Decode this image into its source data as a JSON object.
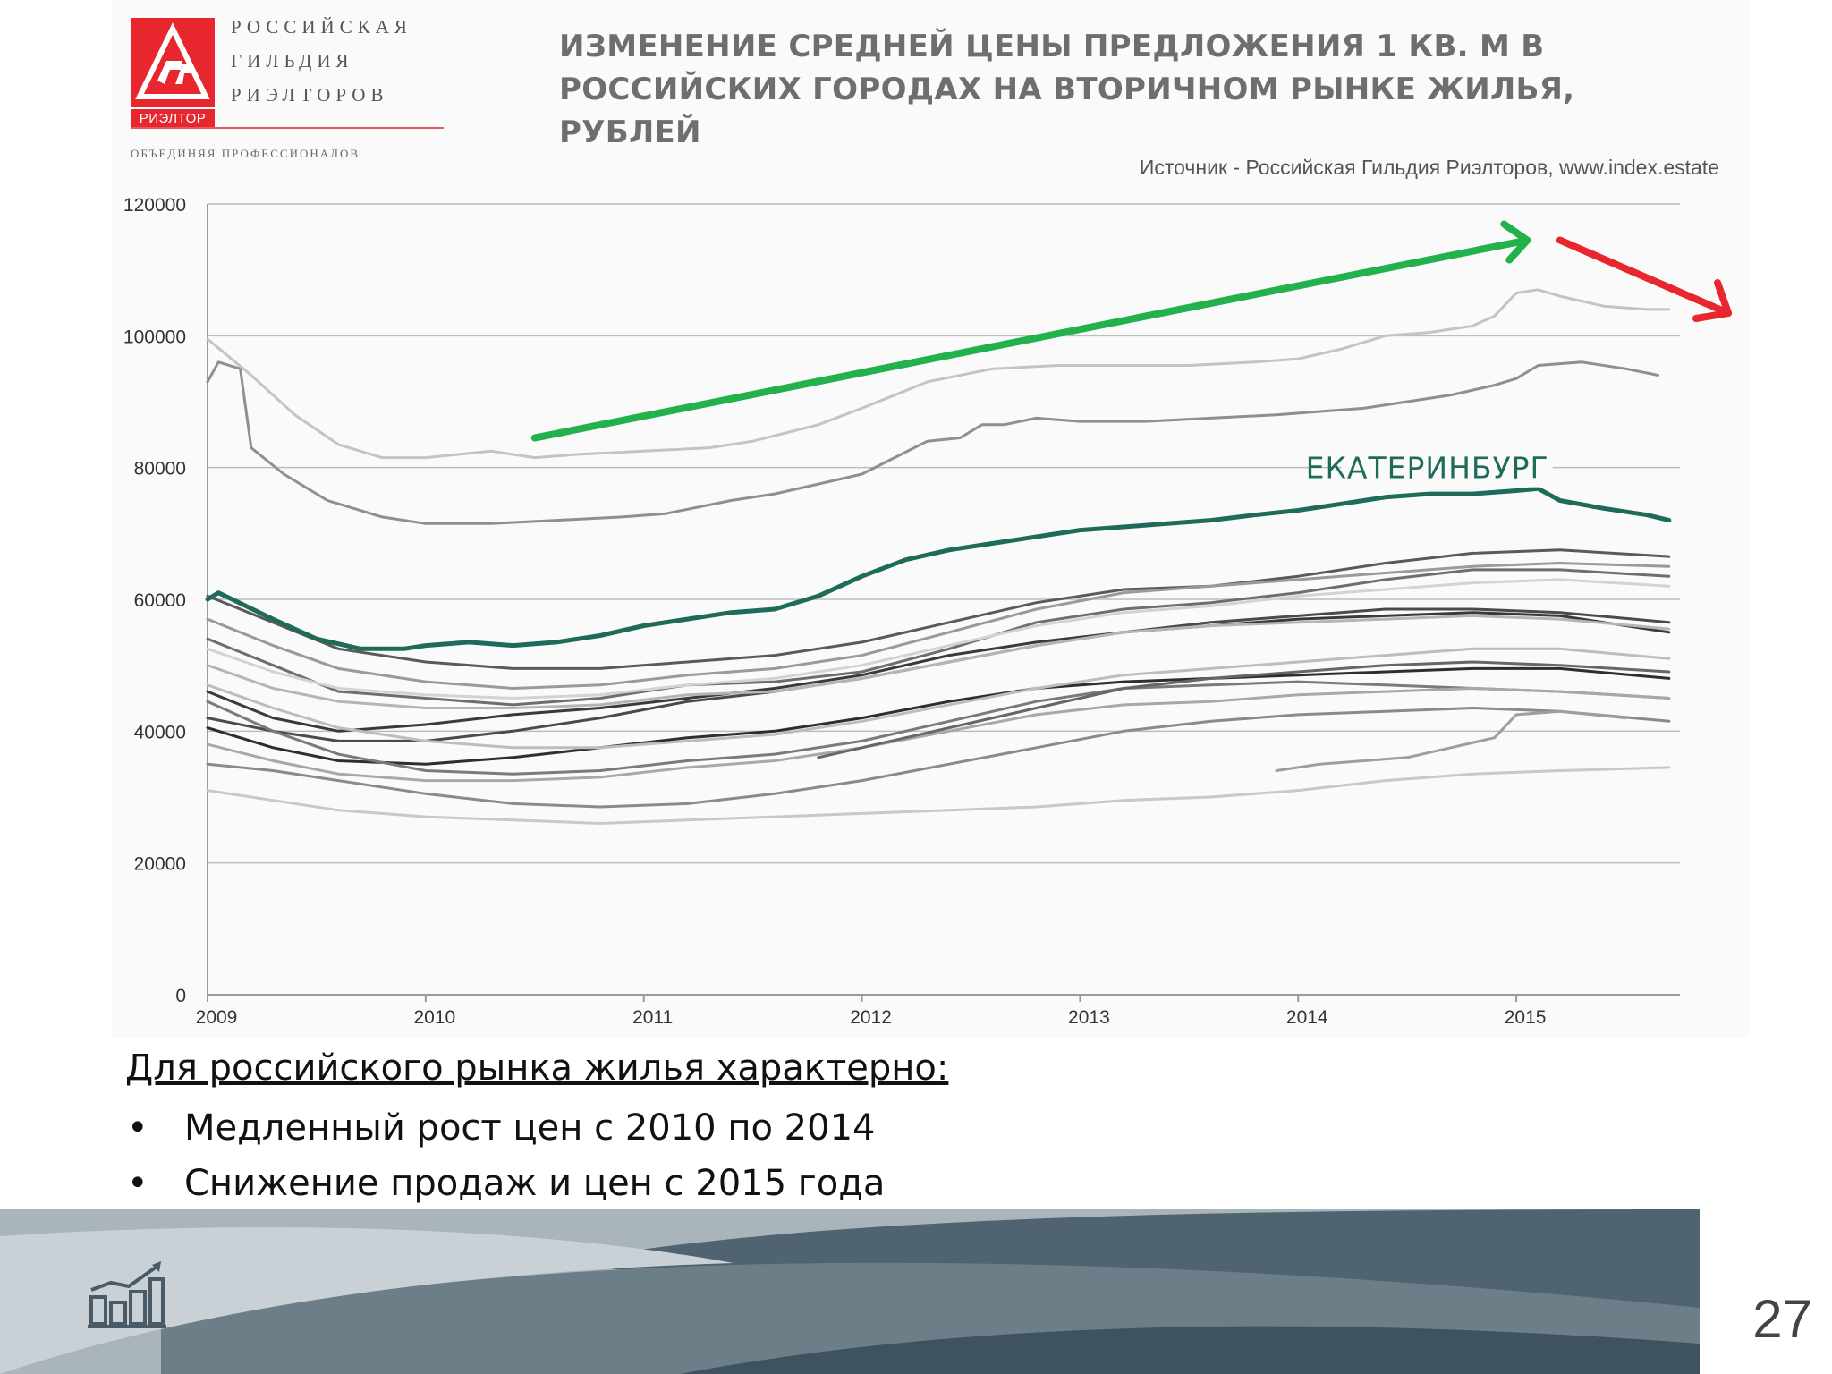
{
  "logo": {
    "line1": "РОССИЙСКАЯ",
    "line2": "ГИЛЬДИЯ",
    "line3": "РИЭЛТОРОВ",
    "brand": "РИЭЛТОР",
    "tagline": "ОБЪЕДИНЯЯ ПРОФЕССИОНАЛОВ",
    "color": "#e8262d"
  },
  "chart_data": {
    "type": "line",
    "title": "ИЗМЕНЕНИЕ СРЕДНЕЙ ЦЕНЫ ПРЕДЛОЖЕНИЯ 1 КВ. М В РОССИЙСКИХ ГОРОДАХ НА ВТОРИЧНОМ РЫНКЕ ЖИЛЬЯ, РУБЛЕЙ",
    "source": "Источник - Российская  Гильдия Риэлторов, www.index.estate",
    "xlabel": "",
    "ylabel": "",
    "xlim": [
      2009,
      2015.75
    ],
    "ylim": [
      0,
      120000
    ],
    "x_ticks": [
      "2009",
      "2010",
      "2011",
      "2012",
      "2013",
      "2014",
      "2015"
    ],
    "y_ticks": [
      "0",
      "20000",
      "40000",
      "60000",
      "80000",
      "100000",
      "120000"
    ],
    "grid": "horizontal",
    "highlight_label": "ЕКАТЕРИНБУРГ",
    "series": [
      {
        "name": "ЕКАТЕРИНБУРГ",
        "color": "#1e6b5a",
        "width": 5,
        "x": [
          2009.0,
          2009.05,
          2009.3,
          2009.5,
          2009.7,
          2009.9,
          2010.0,
          2010.2,
          2010.4,
          2010.6,
          2010.8,
          2011.0,
          2011.2,
          2011.4,
          2011.6,
          2011.8,
          2012.0,
          2012.2,
          2012.4,
          2012.6,
          2012.8,
          2013.0,
          2013.2,
          2013.4,
          2013.6,
          2013.8,
          2014.0,
          2014.2,
          2014.4,
          2014.6,
          2014.8,
          2015.0,
          2015.1,
          2015.2,
          2015.4,
          2015.6,
          2015.7
        ],
        "y": [
          60000,
          61000,
          57000,
          54000,
          52500,
          52500,
          53000,
          53500,
          53000,
          53500,
          54500,
          56000,
          57000,
          58000,
          58500,
          60500,
          63500,
          66000,
          67500,
          68500,
          69500,
          70500,
          71000,
          71500,
          72000,
          72800,
          73500,
          74500,
          75500,
          76000,
          76000,
          76500,
          76800,
          75000,
          73800,
          72800,
          72000
        ]
      },
      {
        "color": "#8f8f8f",
        "width": 3,
        "x": [
          2009.0,
          2009.05,
          2009.15,
          2009.2,
          2009.35,
          2009.55,
          2009.8,
          2010.0,
          2010.3,
          2010.6,
          2010.9,
          2011.1,
          2011.4,
          2011.6,
          2011.8,
          2012.0,
          2012.15,
          2012.3,
          2012.45,
          2012.55,
          2012.65,
          2012.8,
          2013.0,
          2013.3,
          2013.6,
          2013.9,
          2014.1,
          2014.3,
          2014.5,
          2014.7,
          2014.9,
          2015.0,
          2015.1,
          2015.3,
          2015.5,
          2015.65
        ],
        "y": [
          93000,
          96000,
          95000,
          83000,
          79000,
          75000,
          72500,
          71500,
          71500,
          72000,
          72500,
          73000,
          75000,
          76000,
          77500,
          79000,
          81500,
          84000,
          84500,
          86500,
          86500,
          87500,
          87000,
          87000,
          87500,
          88000,
          88500,
          89000,
          90000,
          91000,
          92500,
          93500,
          95500,
          96000,
          95000,
          94000
        ]
      },
      {
        "color": "#c4c4c4",
        "width": 3,
        "x": [
          2009.0,
          2009.2,
          2009.4,
          2009.6,
          2009.8,
          2010.0,
          2010.3,
          2010.5,
          2010.7,
          2011.0,
          2011.3,
          2011.5,
          2011.8,
          2012.0,
          2012.3,
          2012.6,
          2012.9,
          2013.2,
          2013.5,
          2013.8,
          2014.0,
          2014.2,
          2014.4,
          2014.6,
          2014.8,
          2014.9,
          2015.0,
          2015.1,
          2015.2,
          2015.4,
          2015.6,
          2015.7
        ],
        "y": [
          99500,
          94000,
          88000,
          83500,
          81500,
          81500,
          82500,
          81500,
          82000,
          82500,
          83000,
          84000,
          86500,
          89000,
          93000,
          95000,
          95500,
          95500,
          95500,
          96000,
          96500,
          98000,
          100000,
          100500,
          101500,
          103000,
          106500,
          107000,
          106000,
          104500,
          104000,
          104000
        ]
      },
      {
        "color": "#3a3a3a",
        "width": 3,
        "x": [
          2009.0,
          2009.3,
          2009.6,
          2010.0,
          2010.4,
          2010.8,
          2011.2,
          2011.6,
          2012.0,
          2012.4,
          2012.8,
          2013.2,
          2013.6,
          2014.0,
          2014.4,
          2014.8,
          2015.2,
          2015.7
        ],
        "y": [
          46000,
          42000,
          40000,
          41000,
          42500,
          43500,
          45000,
          46500,
          48500,
          51500,
          53500,
          55000,
          56000,
          57000,
          57500,
          58000,
          57500,
          55000
        ]
      },
      {
        "color": "#5a5a5a",
        "width": 3,
        "x": [
          2009.0,
          2009.3,
          2009.6,
          2010.0,
          2010.4,
          2010.8,
          2011.2,
          2011.6,
          2012.0,
          2012.4,
          2012.8,
          2013.2,
          2013.6,
          2014.0,
          2014.4,
          2014.8,
          2015.2,
          2015.7
        ],
        "y": [
          60500,
          56500,
          52500,
          50500,
          49500,
          49500,
          50500,
          51500,
          53500,
          56500,
          59500,
          61500,
          62000,
          63500,
          65500,
          67000,
          67500,
          66500
        ]
      },
      {
        "color": "#4a4a4a",
        "width": 3,
        "x": [
          2009.0,
          2009.3,
          2009.6,
          2010.0,
          2010.4,
          2010.8,
          2011.2,
          2011.6,
          2012.0,
          2012.4,
          2012.8,
          2013.2,
          2013.6,
          2014.0,
          2014.4,
          2014.8,
          2015.2,
          2015.7
        ],
        "y": [
          42000,
          40000,
          38500,
          38500,
          40000,
          42000,
          44500,
          46000,
          48000,
          50500,
          53000,
          55000,
          56500,
          57500,
          58500,
          58500,
          58000,
          56500
        ]
      },
      {
        "color": "#6e6e6e",
        "width": 3,
        "x": [
          2009.0,
          2009.3,
          2009.6,
          2010.0,
          2010.4,
          2010.8,
          2011.2,
          2011.6,
          2012.0,
          2012.4,
          2012.8,
          2013.2,
          2013.6,
          2014.0,
          2014.4,
          2014.8,
          2015.2,
          2015.7
        ],
        "y": [
          54000,
          50000,
          46000,
          45000,
          44000,
          45000,
          47000,
          47500,
          49000,
          52500,
          56500,
          58500,
          59500,
          61000,
          63000,
          64500,
          64500,
          63500
        ]
      },
      {
        "color": "#9a9a9a",
        "width": 3,
        "x": [
          2009.0,
          2009.3,
          2009.6,
          2010.0,
          2010.4,
          2010.8,
          2011.2,
          2011.6,
          2012.0,
          2012.4,
          2012.8,
          2013.2,
          2013.6,
          2014.0,
          2014.4,
          2014.8,
          2015.2,
          2015.7
        ],
        "y": [
          57000,
          53000,
          49500,
          47500,
          46500,
          47000,
          48500,
          49500,
          51500,
          55000,
          58500,
          61000,
          62000,
          63000,
          64000,
          65000,
          65500,
          65000
        ]
      },
      {
        "color": "#b5b5b5",
        "width": 3,
        "x": [
          2009.0,
          2009.3,
          2009.6,
          2010.0,
          2010.4,
          2010.8,
          2011.2,
          2011.6,
          2012.0,
          2012.4,
          2012.8,
          2013.2,
          2013.6,
          2014.0,
          2014.4,
          2014.8,
          2015.2,
          2015.7
        ],
        "y": [
          50000,
          46500,
          44500,
          43500,
          43500,
          44000,
          45500,
          46000,
          48000,
          50500,
          53000,
          55000,
          56000,
          56500,
          57000,
          57500,
          57000,
          55500
        ]
      },
      {
        "color": "#2e2e2e",
        "width": 3,
        "x": [
          2009.0,
          2009.3,
          2009.6,
          2010.0,
          2010.4,
          2010.8,
          2011.2,
          2011.6,
          2012.0,
          2012.4,
          2012.8,
          2013.2,
          2013.6,
          2014.0,
          2014.4,
          2014.8,
          2015.2,
          2015.7
        ],
        "y": [
          40500,
          37500,
          35500,
          35000,
          36000,
          37500,
          39000,
          40000,
          42000,
          44500,
          46500,
          47500,
          48000,
          48500,
          49000,
          49500,
          49500,
          48000
        ]
      },
      {
        "color": "#7a7a7a",
        "width": 3,
        "x": [
          2009.0,
          2009.3,
          2009.6,
          2010.0,
          2010.4,
          2010.8,
          2011.2,
          2011.6,
          2012.0,
          2012.4,
          2012.8,
          2013.2,
          2013.6,
          2014.0,
          2014.4,
          2014.8,
          2015.2,
          2015.7
        ],
        "y": [
          44500,
          40000,
          36500,
          34000,
          33500,
          34000,
          35500,
          36500,
          38500,
          41500,
          44500,
          46500,
          47000,
          47500,
          47000,
          46500,
          46000,
          45000
        ]
      },
      {
        "color": "#a8a8a8",
        "width": 3,
        "x": [
          2009.0,
          2009.3,
          2009.6,
          2010.0,
          2010.4,
          2010.8,
          2011.2,
          2011.6,
          2012.0,
          2012.4,
          2012.8,
          2013.2,
          2013.6,
          2014.0,
          2014.4,
          2014.8,
          2015.2,
          2015.7
        ],
        "y": [
          38000,
          35500,
          33500,
          32500,
          32500,
          33000,
          34500,
          35500,
          37500,
          40000,
          42500,
          44000,
          44500,
          45500,
          46000,
          46500,
          46000,
          45000
        ]
      },
      {
        "color": "#8a8a8a",
        "width": 3,
        "x": [
          2009.0,
          2009.3,
          2009.6,
          2010.0,
          2010.4,
          2010.8,
          2011.2,
          2011.6,
          2012.0,
          2012.4,
          2012.8,
          2013.2,
          2013.6,
          2014.0,
          2014.4,
          2014.8,
          2015.2,
          2015.7
        ],
        "y": [
          35000,
          34000,
          32500,
          30500,
          29000,
          28500,
          29000,
          30500,
          32500,
          35000,
          37500,
          40000,
          41500,
          42500,
          43000,
          43500,
          43000,
          41500
        ]
      },
      {
        "color": "#c8c8c8",
        "width": 3,
        "x": [
          2009.0,
          2009.3,
          2009.6,
          2010.0,
          2010.4,
          2010.8,
          2011.2,
          2011.6,
          2012.0,
          2012.4,
          2012.8,
          2013.2,
          2013.6,
          2014.0,
          2014.4,
          2014.8,
          2015.2,
          2015.7
        ],
        "y": [
          31000,
          29500,
          28000,
          27000,
          26500,
          26000,
          26500,
          27000,
          27500,
          28000,
          28500,
          29500,
          30000,
          31000,
          32500,
          33500,
          34000,
          34500
        ]
      },
      {
        "color": "#bdbdbd",
        "width": 3,
        "x": [
          2009.0,
          2009.3,
          2009.6,
          2010.0,
          2010.4,
          2010.8,
          2011.2,
          2011.6,
          2012.0,
          2012.4,
          2012.8,
          2013.2,
          2013.6,
          2014.0,
          2014.4,
          2014.8,
          2015.2,
          2015.7
        ],
        "y": [
          47000,
          43500,
          40500,
          38500,
          37500,
          37500,
          38500,
          39500,
          41500,
          44000,
          46500,
          48500,
          49500,
          50500,
          51500,
          52500,
          52500,
          51000
        ]
      },
      {
        "color": "#d3d3d3",
        "width": 3,
        "x": [
          2009.0,
          2009.3,
          2009.6,
          2010.0,
          2010.4,
          2010.8,
          2011.2,
          2011.6,
          2012.0,
          2012.4,
          2012.8,
          2013.2,
          2013.6,
          2014.0,
          2014.4,
          2014.8,
          2015.2,
          2015.7
        ],
        "y": [
          52500,
          49000,
          46500,
          45500,
          45000,
          45500,
          47000,
          48000,
          50000,
          53000,
          56000,
          58000,
          59000,
          60500,
          61500,
          62500,
          63000,
          62000
        ]
      },
      {
        "color": "#666666",
        "width": 3,
        "x": [
          2011.8,
          2012.0,
          2012.4,
          2012.8,
          2013.2,
          2013.6,
          2014.0,
          2014.4,
          2014.8,
          2015.2,
          2015.7
        ],
        "y": [
          36000,
          37500,
          40500,
          43500,
          46500,
          48000,
          49000,
          50000,
          50500,
          50000,
          49000
        ]
      },
      {
        "color": "#9e9e9e",
        "width": 3,
        "x": [
          2013.9,
          2014.1,
          2014.3,
          2014.5,
          2014.7,
          2014.9,
          2015.0,
          2015.2,
          2015.5
        ],
        "y": [
          34000,
          35000,
          35500,
          36000,
          37500,
          39000,
          42500,
          43000,
          42000
        ]
      }
    ]
  },
  "bullets": {
    "heading": "Для российского рынка жилья характерно:",
    "marker": "•",
    "items": [
      "Медленный рост цен с 2010 по 2014",
      "Снижение продаж и цен с 2015 года"
    ]
  },
  "page_number": "27",
  "colors": {
    "trend_up": "#22b14c",
    "trend_down": "#e8262d",
    "highlight": "#1e6b5a"
  }
}
